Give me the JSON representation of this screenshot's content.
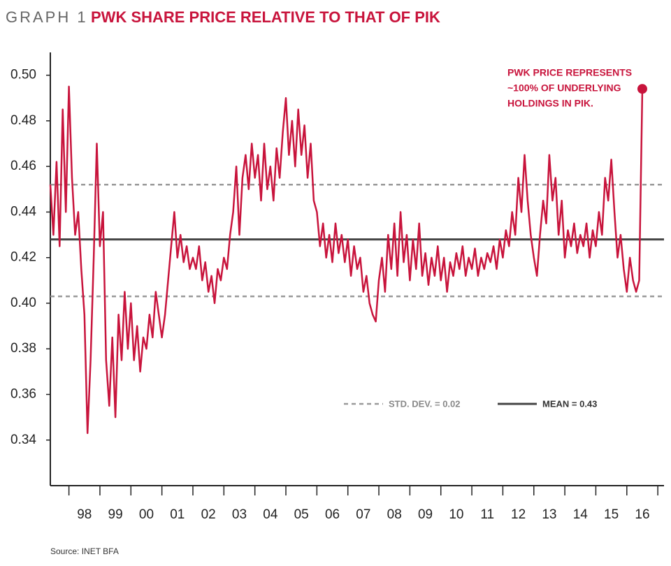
{
  "chart_data": {
    "type": "line",
    "label": "GRAPH 1",
    "title": "PWK SHARE PRICE RELATIVE TO THAT OF PIK",
    "source": "Source: INET BFA",
    "annotation": {
      "lines": [
        "PWK PRICE REPRESENTS",
        "~100% OF UNDERLYING",
        "HOLDINGS IN PIK."
      ]
    },
    "xlim": [
      1997.4,
      2017.2
    ],
    "ylim": [
      0.32,
      0.51
    ],
    "yticks": [
      {
        "value": 0.34,
        "label": "0.34"
      },
      {
        "value": 0.36,
        "label": "0.36"
      },
      {
        "value": 0.38,
        "label": "0.38"
      },
      {
        "value": 0.4,
        "label": "0.40"
      },
      {
        "value": 0.42,
        "label": "0.42"
      },
      {
        "value": 0.44,
        "label": "0.44"
      },
      {
        "value": 0.46,
        "label": "0.46"
      },
      {
        "value": 0.48,
        "label": "0.48"
      },
      {
        "value": 0.5,
        "label": "0.50"
      }
    ],
    "xticks": [
      {
        "value": 1998.5,
        "label": "98"
      },
      {
        "value": 1999.5,
        "label": "99"
      },
      {
        "value": 2000.5,
        "label": "00"
      },
      {
        "value": 2001.5,
        "label": "01"
      },
      {
        "value": 2002.5,
        "label": "02"
      },
      {
        "value": 2003.5,
        "label": "03"
      },
      {
        "value": 2004.5,
        "label": "04"
      },
      {
        "value": 2005.5,
        "label": "05"
      },
      {
        "value": 2006.5,
        "label": "06"
      },
      {
        "value": 2007.5,
        "label": "07"
      },
      {
        "value": 2008.5,
        "label": "08"
      },
      {
        "value": 2009.5,
        "label": "09"
      },
      {
        "value": 2010.5,
        "label": "10"
      },
      {
        "value": 2011.5,
        "label": "11"
      },
      {
        "value": 2012.5,
        "label": "12"
      },
      {
        "value": 2013.5,
        "label": "13"
      },
      {
        "value": 2014.5,
        "label": "14"
      },
      {
        "value": 2015.5,
        "label": "15"
      },
      {
        "value": 2016.5,
        "label": "16"
      }
    ],
    "x_minor_ticks": [
      1998,
      1999,
      2000,
      2001,
      2002,
      2003,
      2004,
      2005,
      2006,
      2007,
      2008,
      2009,
      2010,
      2011,
      2012,
      2013,
      2014,
      2015,
      2016,
      2017
    ],
    "grid": false,
    "reference_lines": [
      {
        "value": 0.452,
        "style": "dashed",
        "color": "#999999"
      },
      {
        "value": 0.428,
        "style": "solid",
        "color": "#444444"
      },
      {
        "value": 0.403,
        "style": "dashed",
        "color": "#999999"
      }
    ],
    "legend": [
      {
        "label": "STD. DEV. = 0.02",
        "style": "dashed",
        "color": "#999999"
      },
      {
        "label": "MEAN = 0.43",
        "style": "solid",
        "color": "#444444"
      }
    ],
    "end_marker": true,
    "series": [
      {
        "color": "#c8143c",
        "x": [
          1997.4,
          1997.5,
          1997.6,
          1997.7,
          1997.8,
          1997.9,
          1998.0,
          1998.1,
          1998.2,
          1998.3,
          1998.4,
          1998.5,
          1998.6,
          1998.7,
          1998.8,
          1998.9,
          1999.0,
          1999.1,
          1999.2,
          1999.3,
          1999.4,
          1999.5,
          1999.6,
          1999.7,
          1999.8,
          1999.9,
          2000.0,
          2000.1,
          2000.2,
          2000.3,
          2000.4,
          2000.5,
          2000.6,
          2000.7,
          2000.8,
          2000.9,
          2001.0,
          2001.1,
          2001.2,
          2001.3,
          2001.4,
          2001.5,
          2001.6,
          2001.7,
          2001.8,
          2001.9,
          2002.0,
          2002.1,
          2002.2,
          2002.3,
          2002.4,
          2002.5,
          2002.6,
          2002.7,
          2002.8,
          2002.9,
          2003.0,
          2003.1,
          2003.2,
          2003.3,
          2003.4,
          2003.5,
          2003.6,
          2003.7,
          2003.8,
          2003.9,
          2004.0,
          2004.1,
          2004.2,
          2004.3,
          2004.4,
          2004.5,
          2004.6,
          2004.7,
          2004.8,
          2004.9,
          2005.0,
          2005.1,
          2005.2,
          2005.3,
          2005.4,
          2005.5,
          2005.6,
          2005.7,
          2005.8,
          2005.9,
          2006.0,
          2006.1,
          2006.2,
          2006.3,
          2006.4,
          2006.5,
          2006.6,
          2006.7,
          2006.8,
          2006.9,
          2007.0,
          2007.1,
          2007.2,
          2007.3,
          2007.4,
          2007.5,
          2007.6,
          2007.7,
          2007.8,
          2007.9,
          2008.0,
          2008.1,
          2008.2,
          2008.3,
          2008.4,
          2008.5,
          2008.6,
          2008.7,
          2008.8,
          2008.9,
          2009.0,
          2009.1,
          2009.2,
          2009.3,
          2009.4,
          2009.5,
          2009.6,
          2009.7,
          2009.8,
          2009.9,
          2010.0,
          2010.1,
          2010.2,
          2010.3,
          2010.4,
          2010.5,
          2010.6,
          2010.7,
          2010.8,
          2010.9,
          2011.0,
          2011.1,
          2011.2,
          2011.3,
          2011.4,
          2011.5,
          2011.6,
          2011.7,
          2011.8,
          2011.9,
          2012.0,
          2012.1,
          2012.2,
          2012.3,
          2012.4,
          2012.5,
          2012.6,
          2012.7,
          2012.8,
          2012.9,
          2013.0,
          2013.1,
          2013.2,
          2013.3,
          2013.4,
          2013.5,
          2013.6,
          2013.7,
          2013.8,
          2013.9,
          2014.0,
          2014.1,
          2014.2,
          2014.3,
          2014.4,
          2014.5,
          2014.6,
          2014.7,
          2014.8,
          2014.9,
          2015.0,
          2015.1,
          2015.2,
          2015.3,
          2015.4,
          2015.5,
          2015.6,
          2015.7,
          2015.8,
          2015.9,
          2016.0,
          2016.1,
          2016.2,
          2016.3,
          2016.4,
          2016.5
        ],
        "values": [
          0.452,
          0.43,
          0.462,
          0.425,
          0.485,
          0.44,
          0.495,
          0.455,
          0.43,
          0.44,
          0.415,
          0.395,
          0.343,
          0.375,
          0.42,
          0.47,
          0.425,
          0.44,
          0.375,
          0.355,
          0.385,
          0.35,
          0.395,
          0.375,
          0.405,
          0.38,
          0.4,
          0.375,
          0.39,
          0.37,
          0.385,
          0.38,
          0.395,
          0.385,
          0.405,
          0.395,
          0.385,
          0.395,
          0.41,
          0.425,
          0.44,
          0.42,
          0.43,
          0.418,
          0.425,
          0.415,
          0.42,
          0.415,
          0.425,
          0.41,
          0.418,
          0.405,
          0.412,
          0.4,
          0.415,
          0.41,
          0.42,
          0.415,
          0.43,
          0.44,
          0.46,
          0.43,
          0.455,
          0.465,
          0.45,
          0.47,
          0.455,
          0.465,
          0.445,
          0.47,
          0.45,
          0.46,
          0.445,
          0.468,
          0.455,
          0.475,
          0.49,
          0.465,
          0.48,
          0.46,
          0.485,
          0.465,
          0.478,
          0.455,
          0.47,
          0.445,
          0.44,
          0.425,
          0.435,
          0.42,
          0.43,
          0.418,
          0.435,
          0.422,
          0.43,
          0.418,
          0.428,
          0.412,
          0.425,
          0.415,
          0.42,
          0.405,
          0.412,
          0.4,
          0.395,
          0.392,
          0.41,
          0.42,
          0.405,
          0.43,
          0.415,
          0.435,
          0.412,
          0.44,
          0.418,
          0.43,
          0.41,
          0.428,
          0.415,
          0.435,
          0.412,
          0.422,
          0.408,
          0.42,
          0.412,
          0.425,
          0.41,
          0.42,
          0.405,
          0.418,
          0.412,
          0.422,
          0.415,
          0.425,
          0.412,
          0.42,
          0.415,
          0.424,
          0.412,
          0.42,
          0.415,
          0.422,
          0.418,
          0.425,
          0.415,
          0.428,
          0.42,
          0.432,
          0.425,
          0.44,
          0.43,
          0.455,
          0.44,
          0.465,
          0.445,
          0.43,
          0.42,
          0.412,
          0.43,
          0.445,
          0.435,
          0.465,
          0.445,
          0.455,
          0.43,
          0.445,
          0.42,
          0.432,
          0.425,
          0.435,
          0.422,
          0.43,
          0.425,
          0.435,
          0.42,
          0.432,
          0.425,
          0.44,
          0.43,
          0.455,
          0.445,
          0.463,
          0.44,
          0.42,
          0.43,
          0.415,
          0.405,
          0.42,
          0.41,
          0.405,
          0.41,
          0.494
        ]
      }
    ]
  }
}
